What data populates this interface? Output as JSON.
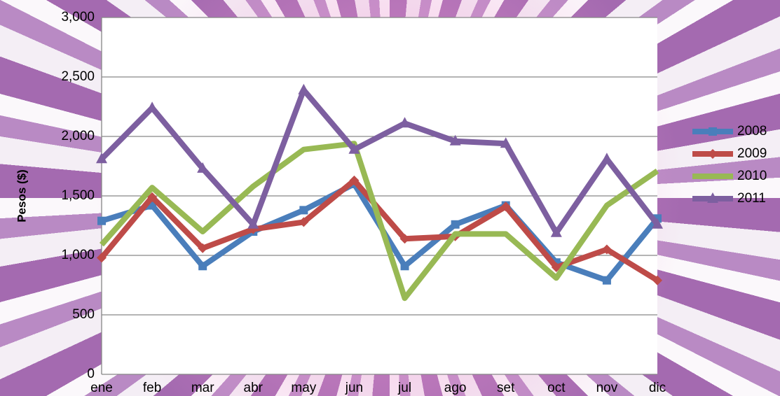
{
  "chart_data": {
    "type": "line",
    "y_label": "Pesos ($)",
    "categories": [
      "ene",
      "feb",
      "mar",
      "abr",
      "may",
      "jun",
      "jul",
      "ago",
      "set",
      "oct",
      "nov",
      "dic"
    ],
    "ylim": [
      0,
      3000
    ],
    "yticks": [
      0,
      500,
      {
        "value": 1000,
        "label": "1,000"
      },
      {
        "value": 1500,
        "label": "1,500"
      },
      {
        "value": 2000,
        "label": "2,000"
      },
      {
        "value": 2500,
        "label": "2,500"
      },
      {
        "value": 3000,
        "label": "3,000"
      }
    ],
    "grid": true,
    "legend": "right",
    "series": [
      {
        "name": "2008",
        "color": "#4a7ebb",
        "marker": "square",
        "values": [
          1290,
          1420,
          910,
          1200,
          1380,
          1600,
          910,
          1260,
          1420,
          940,
          790,
          1310
        ]
      },
      {
        "name": "2009",
        "color": "#be4b48",
        "marker": "diamond",
        "values": [
          980,
          1490,
          1060,
          1220,
          1280,
          1630,
          1140,
          1160,
          1410,
          900,
          1050,
          790
        ]
      },
      {
        "name": "2010",
        "color": "#98b954",
        "marker": "none",
        "values": [
          1090,
          1570,
          1200,
          1580,
          1890,
          1940,
          640,
          1180,
          1180,
          810,
          1420,
          1710
        ]
      },
      {
        "name": "2011",
        "color": "#7d5fa0",
        "marker": "triangle",
        "values": [
          1810,
          2240,
          1730,
          1260,
          2390,
          1890,
          2110,
          1960,
          1940,
          1190,
          1810,
          1260
        ]
      }
    ]
  }
}
